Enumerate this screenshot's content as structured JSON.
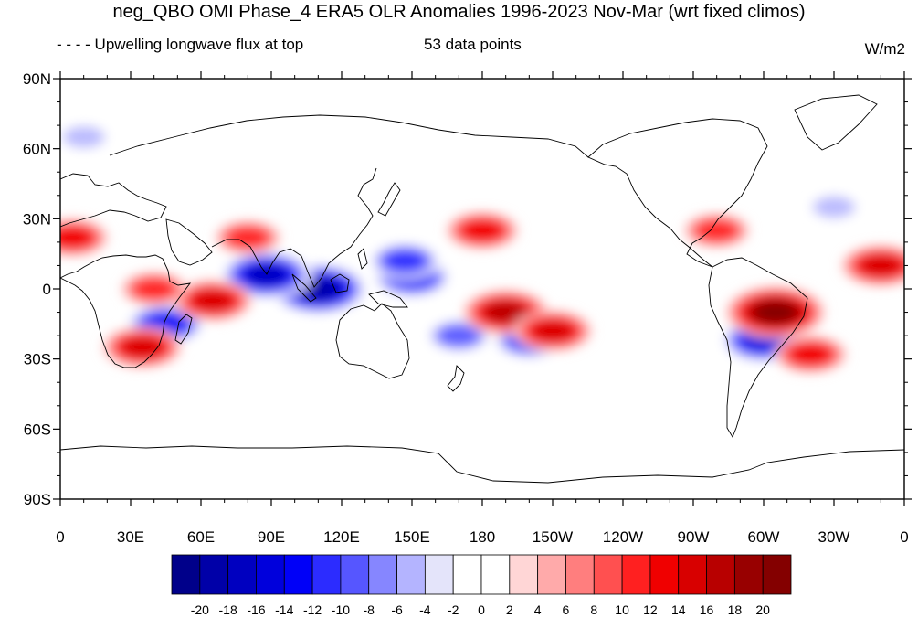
{
  "title": "neg_QBO OMI Phase_4 ERA5 OLR Anomalies 1996-2023 Nov-Mar (wrt fixed climos)",
  "subtitle_left": "- - - - Upwelling longwave flux at top",
  "subtitle_center": "53 data points",
  "units": "W/m2",
  "axes": {
    "y_ticks": [
      {
        "label": "90N",
        "lat": 90
      },
      {
        "label": "60N",
        "lat": 60
      },
      {
        "label": "30N",
        "lat": 30
      },
      {
        "label": "0",
        "lat": 0
      },
      {
        "label": "30S",
        "lat": -30
      },
      {
        "label": "60S",
        "lat": -60
      },
      {
        "label": "90S",
        "lat": -90
      }
    ],
    "x_ticks": [
      {
        "label": "0",
        "lon": 0
      },
      {
        "label": "30E",
        "lon": 30
      },
      {
        "label": "60E",
        "lon": 60
      },
      {
        "label": "90E",
        "lon": 90
      },
      {
        "label": "120E",
        "lon": 120
      },
      {
        "label": "150E",
        "lon": 150
      },
      {
        "label": "180",
        "lon": 180
      },
      {
        "label": "150W",
        "lon": 210
      },
      {
        "label": "120W",
        "lon": 240
      },
      {
        "label": "90W",
        "lon": 270
      },
      {
        "label": "60W",
        "lon": 300
      },
      {
        "label": "30W",
        "lon": 330
      },
      {
        "label": "0",
        "lon": 360
      }
    ]
  },
  "colorbar": {
    "labels": [
      "-20",
      "-18",
      "-16",
      "-14",
      "-12",
      "-10",
      "-8",
      "-6",
      "-4",
      "-2",
      "0",
      "2",
      "4",
      "6",
      "8",
      "10",
      "12",
      "14",
      "16",
      "18",
      "20"
    ],
    "colors": [
      "#00008a",
      "#0000a8",
      "#0000c0",
      "#0000dc",
      "#0000f8",
      "#2c2cff",
      "#5656ff",
      "#8686ff",
      "#b4b4ff",
      "#e4e4fa",
      "#ffffff",
      "#ffffff",
      "#ffd6d6",
      "#ffaaaa",
      "#ff7e7e",
      "#ff5050",
      "#ff2020",
      "#f00000",
      "#d80000",
      "#b80000",
      "#980000",
      "#840000"
    ]
  },
  "anomaly_blobs": [
    {
      "lon": 110,
      "lat": 0,
      "value": -20
    },
    {
      "lon": 88,
      "lat": 6,
      "value": -18
    },
    {
      "lon": 150,
      "lat": 5,
      "value": -14
    },
    {
      "lon": 45,
      "lat": -15,
      "value": -14
    },
    {
      "lon": 147,
      "lat": 12,
      "value": -12
    },
    {
      "lon": 300,
      "lat": -22,
      "value": -16
    },
    {
      "lon": 170,
      "lat": -20,
      "value": -10
    },
    {
      "lon": 200,
      "lat": -22,
      "value": -12
    },
    {
      "lon": 10,
      "lat": 65,
      "value": -6
    },
    {
      "lon": 330,
      "lat": 35,
      "value": -6
    },
    {
      "lon": 190,
      "lat": -10,
      "value": 16
    },
    {
      "lon": 210,
      "lat": -18,
      "value": 14
    },
    {
      "lon": 305,
      "lat": -10,
      "value": 20
    },
    {
      "lon": 65,
      "lat": -5,
      "value": 14
    },
    {
      "lon": 35,
      "lat": -25,
      "value": 14
    },
    {
      "lon": 5,
      "lat": 22,
      "value": 12
    },
    {
      "lon": 80,
      "lat": 22,
      "value": 10
    },
    {
      "lon": 180,
      "lat": 25,
      "value": 12
    },
    {
      "lon": 280,
      "lat": 25,
      "value": 10
    },
    {
      "lon": 350,
      "lat": 10,
      "value": 14
    },
    {
      "lon": 320,
      "lat": -28,
      "value": 12
    },
    {
      "lon": 40,
      "lat": 0,
      "value": 10
    }
  ]
}
